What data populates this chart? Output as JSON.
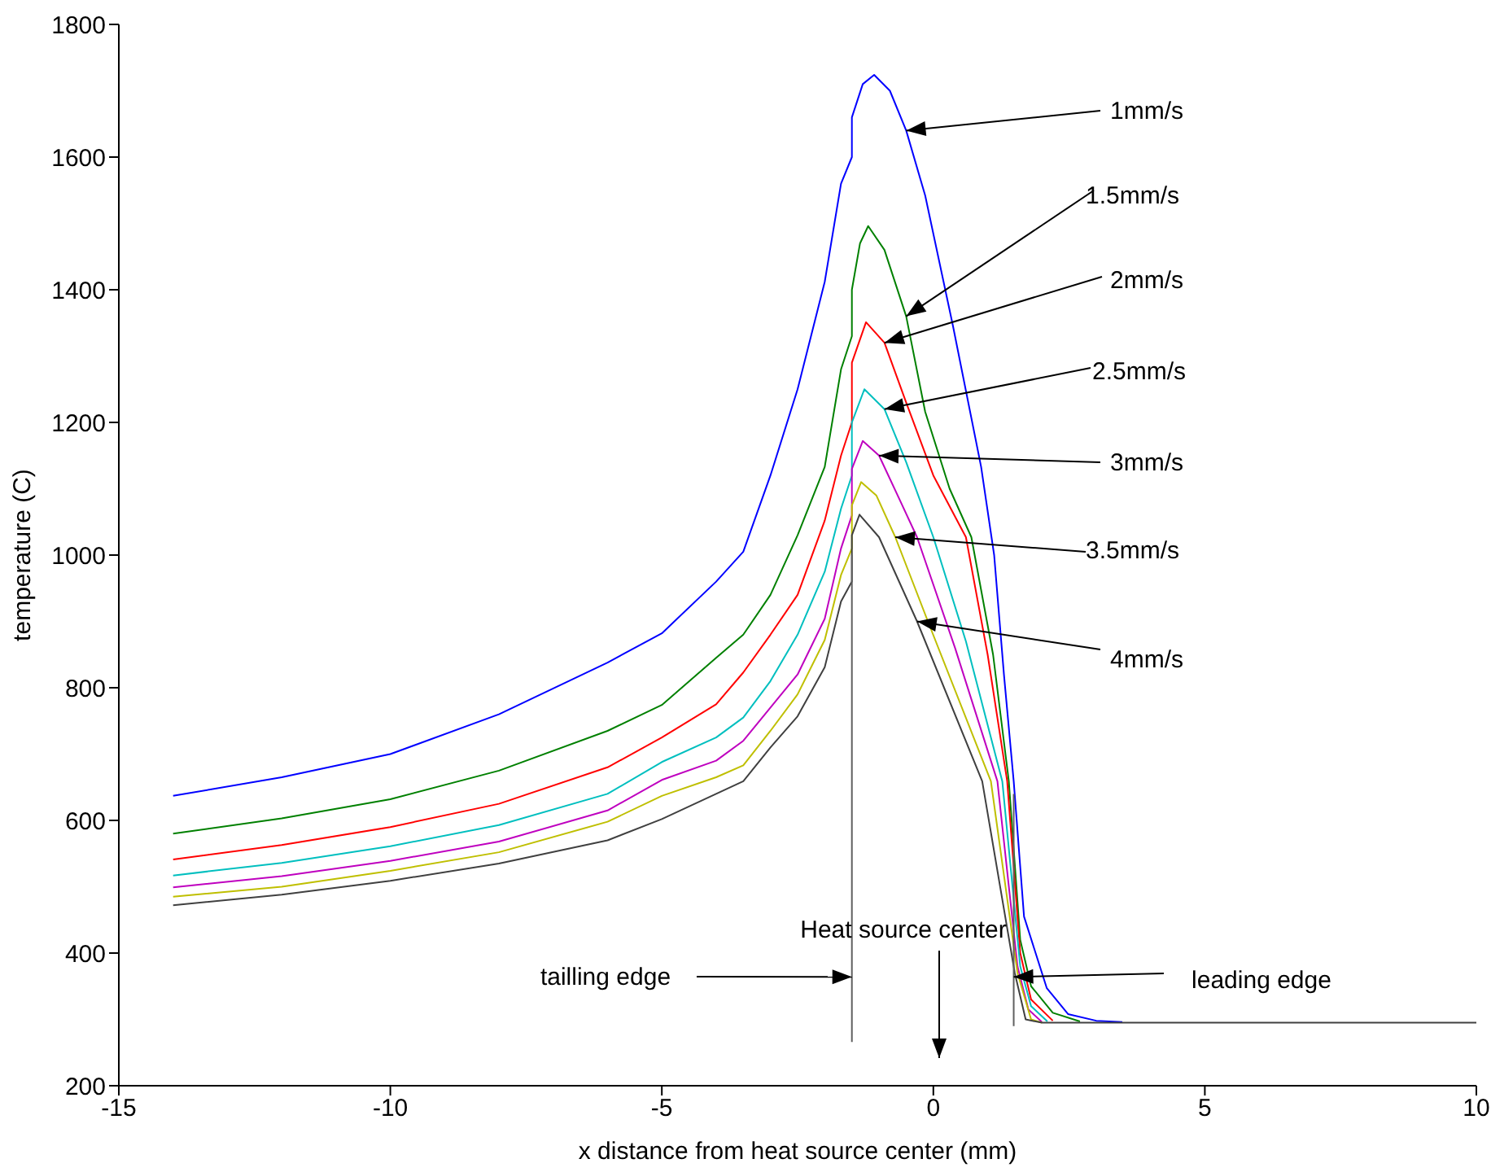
{
  "chart_data": {
    "type": "line",
    "xlabel": "x distance from heat source center (mm)",
    "ylabel": "temperature (C)",
    "xlim": [
      -15,
      10
    ],
    "ylim": [
      200,
      1800
    ],
    "xticks": [
      -15,
      -10,
      -5,
      0,
      5,
      10
    ],
    "yticks": [
      200,
      400,
      600,
      800,
      1000,
      1200,
      1400,
      1600,
      1800
    ],
    "grid": false,
    "legend": false,
    "marker": "none",
    "line_style": "solid",
    "series": [
      {
        "color": "#0000ff",
        "x": [
          -14,
          -12,
          -10,
          -8,
          -6,
          -5,
          -4,
          -3.5,
          -3,
          -2.5,
          -2,
          -1.7,
          -1.5,
          -1.5,
          -1.3,
          -1.09,
          -0.8,
          -0.5,
          -0.15,
          0.36,
          0.88,
          1.12,
          1.3,
          1.48,
          1.67,
          2.09,
          2.48,
          3.0,
          3.48
        ],
        "values": [
          637,
          665,
          700,
          760,
          838,
          882,
          960,
          1005,
          1120,
          1250,
          1412,
          1560,
          1600,
          1660,
          1710,
          1724,
          1700,
          1640,
          1542,
          1346,
          1133,
          1000,
          820,
          659,
          455,
          347,
          308,
          298,
          296
        ]
      },
      {
        "color": "#008000",
        "x": [
          -14,
          -12,
          -10,
          -8,
          -6,
          -5,
          -4,
          -3.5,
          -3,
          -2.5,
          -2,
          -1.7,
          -1.5,
          -1.5,
          -1.35,
          -1.2,
          -0.9,
          -0.5,
          -0.15,
          0.3,
          0.7,
          1.1,
          1.39,
          1.6,
          1.8,
          2.2,
          2.7
        ],
        "values": [
          580,
          603,
          632,
          675,
          735,
          774,
          845,
          880,
          940,
          1030,
          1133,
          1280,
          1330,
          1400,
          1470,
          1496,
          1460,
          1360,
          1216,
          1100,
          1027,
          850,
          659,
          420,
          350,
          310,
          297
        ]
      },
      {
        "color": "#ff0000",
        "x": [
          -14,
          -12,
          -10,
          -8,
          -6,
          -5,
          -4,
          -3.5,
          -3,
          -2.5,
          -2,
          -1.7,
          -1.5,
          -1.5,
          -1.24,
          -0.9,
          -0.5,
          0,
          0.6,
          1.0,
          1.36,
          1.6,
          1.8,
          2.2
        ],
        "values": [
          541,
          563,
          590,
          625,
          680,
          725,
          775,
          823,
          880,
          940,
          1052,
          1150,
          1200,
          1290,
          1351,
          1320,
          1230,
          1120,
          1027,
          850,
          659,
          400,
          330,
          298
        ]
      },
      {
        "color": "#00bfbf",
        "x": [
          -14,
          -12,
          -10,
          -8,
          -6,
          -5,
          -4,
          -3.5,
          -3,
          -2.5,
          -2,
          -1.7,
          -1.5,
          -1.5,
          -1.27,
          -0.9,
          -0.5,
          0,
          0.6,
          1.27,
          1.6,
          1.8,
          2.1
        ],
        "values": [
          517,
          536,
          561,
          593,
          640,
          688,
          725,
          755,
          810,
          880,
          975,
          1070,
          1120,
          1200,
          1250,
          1220,
          1140,
          1027,
          870,
          659,
          380,
          320,
          297
        ]
      },
      {
        "color": "#bf00bf",
        "x": [
          -14,
          -12,
          -10,
          -8,
          -6,
          -5,
          -4,
          -3.5,
          -3,
          -2.5,
          -2,
          -1.7,
          -1.5,
          -1.5,
          -1.3,
          -1.0,
          -0.6,
          -0.3,
          0.4,
          1.18,
          1.55,
          1.75,
          2.0
        ],
        "values": [
          499,
          516,
          539,
          568,
          615,
          661,
          690,
          720,
          770,
          820,
          904,
          1010,
          1060,
          1130,
          1172,
          1150,
          1080,
          1027,
          860,
          659,
          380,
          315,
          296
        ]
      },
      {
        "color": "#bfbf00",
        "x": [
          -14,
          -12,
          -10,
          -8,
          -6,
          -5,
          -4,
          -3.5,
          -3,
          -2.5,
          -2,
          -1.7,
          -1.5,
          -1.5,
          -1.33,
          -1.05,
          -0.7,
          -0.1,
          1.06,
          1.55,
          1.8,
          2.0
        ],
        "values": [
          485,
          500,
          524,
          552,
          598,
          637,
          665,
          683,
          735,
          790,
          872,
          970,
          1010,
          1075,
          1110,
          1090,
          1027,
          900,
          659,
          370,
          300,
          295
        ]
      },
      {
        "color": "#404040",
        "x": [
          -14,
          -12,
          -10,
          -8,
          -6,
          -5,
          -4,
          -3.5,
          -3,
          -2.5,
          -2,
          -1.7,
          -1.5,
          -1.5,
          -1.36,
          -1.0,
          -0.3,
          0.9,
          1.5,
          1.7,
          2.0,
          10
        ],
        "values": [
          472,
          488,
          509,
          535,
          570,
          602,
          640,
          659,
          710,
          757,
          831,
          930,
          960,
          1030,
          1061,
          1027,
          900,
          659,
          370,
          300,
          295,
          295
        ]
      },
      {
        "color": "#606060",
        "x": [
          -1.5,
          -1.5
        ],
        "values": [
          266,
          1000
        ]
      },
      {
        "color": "#606060",
        "x": [
          1.48,
          1.48
        ],
        "values": [
          290,
          640
        ]
      }
    ],
    "annotations": [
      {
        "text": "1mm/s",
        "x": -0.5,
        "y": 1640
      },
      {
        "text": "1.5mm/s",
        "x": -0.5,
        "y": 1360
      },
      {
        "text": "2mm/s",
        "x": -0.9,
        "y": 1320
      },
      {
        "text": "2.5mm/s",
        "x": -0.9,
        "y": 1220
      },
      {
        "text": "3mm/s",
        "x": -1.0,
        "y": 1150
      },
      {
        "text": "3.5mm/s",
        "x": -0.7,
        "y": 1027
      },
      {
        "text": "4mm/s",
        "x": -0.3,
        "y": 900
      },
      {
        "text": "tailling edge",
        "x": -1.5,
        "y": 364
      },
      "Heat source center",
      {
        "text": "leading edge",
        "x": 1.48,
        "y": 364
      }
    ]
  }
}
